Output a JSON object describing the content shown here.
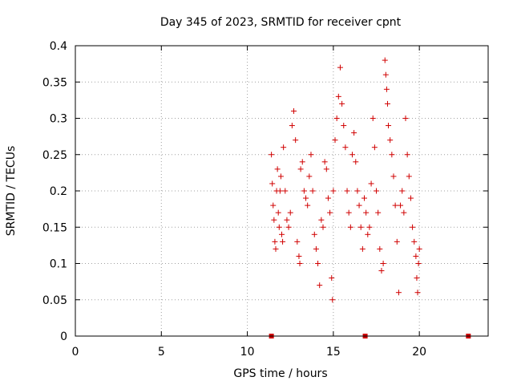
{
  "chart_data": {
    "type": "scatter",
    "title": "Day 345 of 2023, SRMTID for receiver cpnt",
    "xlabel": "GPS time / hours",
    "ylabel": "SRMTID / TECUs",
    "xlim": [
      0,
      24
    ],
    "ylim": [
      0,
      0.4
    ],
    "xticks": [
      0,
      5,
      10,
      15,
      20
    ],
    "yticks": [
      0,
      0.05,
      0.1,
      0.15,
      0.2,
      0.25,
      0.3,
      0.35,
      0.4
    ],
    "grid": true,
    "marker_color": "#d00000",
    "series": [
      {
        "marker": "plus",
        "points": [
          [
            11.4,
            0.25
          ],
          [
            11.45,
            0.21
          ],
          [
            11.5,
            0.18
          ],
          [
            11.55,
            0.16
          ],
          [
            11.6,
            0.13
          ],
          [
            11.65,
            0.12
          ],
          [
            11.7,
            0.2
          ],
          [
            11.75,
            0.23
          ],
          [
            11.8,
            0.17
          ],
          [
            11.85,
            0.15
          ],
          [
            11.9,
            0.2
          ],
          [
            11.95,
            0.22
          ],
          [
            12.0,
            0.14
          ],
          [
            12.05,
            0.13
          ],
          [
            12.1,
            0.26
          ],
          [
            12.2,
            0.2
          ],
          [
            12.3,
            0.16
          ],
          [
            12.4,
            0.15
          ],
          [
            12.5,
            0.17
          ],
          [
            12.6,
            0.29
          ],
          [
            12.7,
            0.31
          ],
          [
            12.8,
            0.27
          ],
          [
            12.9,
            0.13
          ],
          [
            13.0,
            0.11
          ],
          [
            13.05,
            0.1
          ],
          [
            13.1,
            0.23
          ],
          [
            13.2,
            0.24
          ],
          [
            13.3,
            0.2
          ],
          [
            13.4,
            0.19
          ],
          [
            13.5,
            0.18
          ],
          [
            13.6,
            0.22
          ],
          [
            13.7,
            0.25
          ],
          [
            13.8,
            0.2
          ],
          [
            13.9,
            0.14
          ],
          [
            14.0,
            0.12
          ],
          [
            14.1,
            0.1
          ],
          [
            14.2,
            0.07
          ],
          [
            14.3,
            0.16
          ],
          [
            14.4,
            0.15
          ],
          [
            14.5,
            0.24
          ],
          [
            14.6,
            0.23
          ],
          [
            14.7,
            0.19
          ],
          [
            14.8,
            0.17
          ],
          [
            14.9,
            0.08
          ],
          [
            14.95,
            0.05
          ],
          [
            15.0,
            0.2
          ],
          [
            15.1,
            0.27
          ],
          [
            15.2,
            0.3
          ],
          [
            15.3,
            0.33
          ],
          [
            15.4,
            0.37
          ],
          [
            15.5,
            0.32
          ],
          [
            15.6,
            0.29
          ],
          [
            15.7,
            0.26
          ],
          [
            15.8,
            0.2
          ],
          [
            15.9,
            0.17
          ],
          [
            16.0,
            0.15
          ],
          [
            16.1,
            0.25
          ],
          [
            16.2,
            0.28
          ],
          [
            16.3,
            0.24
          ],
          [
            16.4,
            0.2
          ],
          [
            16.5,
            0.18
          ],
          [
            16.6,
            0.15
          ],
          [
            16.7,
            0.12
          ],
          [
            16.8,
            0.19
          ],
          [
            16.9,
            0.17
          ],
          [
            17.0,
            0.14
          ],
          [
            17.1,
            0.15
          ],
          [
            17.2,
            0.21
          ],
          [
            17.3,
            0.3
          ],
          [
            17.4,
            0.26
          ],
          [
            17.5,
            0.2
          ],
          [
            17.6,
            0.17
          ],
          [
            17.7,
            0.12
          ],
          [
            17.8,
            0.09
          ],
          [
            17.9,
            0.1
          ],
          [
            18.0,
            0.38
          ],
          [
            18.05,
            0.36
          ],
          [
            18.1,
            0.34
          ],
          [
            18.15,
            0.32
          ],
          [
            18.2,
            0.29
          ],
          [
            18.3,
            0.27
          ],
          [
            18.4,
            0.25
          ],
          [
            18.5,
            0.22
          ],
          [
            18.6,
            0.18
          ],
          [
            18.7,
            0.13
          ],
          [
            18.8,
            0.06
          ],
          [
            18.9,
            0.18
          ],
          [
            19.0,
            0.2
          ],
          [
            19.1,
            0.17
          ],
          [
            19.2,
            0.3
          ],
          [
            19.3,
            0.25
          ],
          [
            19.4,
            0.22
          ],
          [
            19.5,
            0.19
          ],
          [
            19.6,
            0.15
          ],
          [
            19.7,
            0.13
          ],
          [
            19.8,
            0.11
          ],
          [
            19.85,
            0.08
          ],
          [
            19.9,
            0.06
          ],
          [
            19.95,
            0.1
          ],
          [
            20.0,
            0.12
          ]
        ]
      },
      {
        "marker": "square",
        "points": [
          [
            11.4,
            0
          ],
          [
            16.85,
            0
          ],
          [
            22.85,
            0
          ]
        ]
      }
    ]
  }
}
